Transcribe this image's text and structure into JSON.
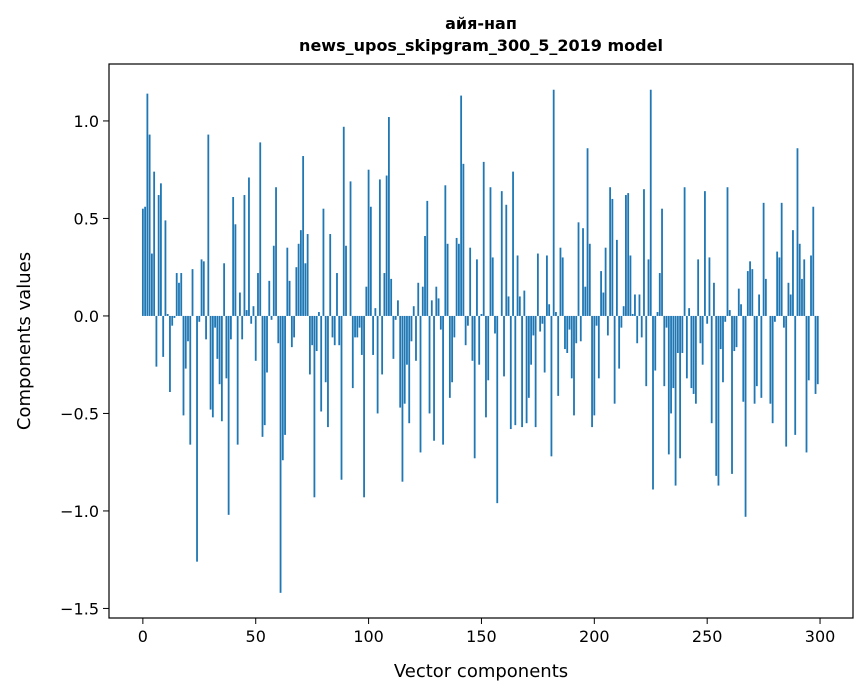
{
  "chart_data": {
    "type": "bar",
    "title": "айя-нап",
    "subtitle": "news_upos_skipgram_300_5_2019 model",
    "xlabel": "Vector components",
    "ylabel": "Components values",
    "xlim": [
      -15,
      314.6
    ],
    "ylim": [
      -1.549,
      1.292
    ],
    "xticks": [
      0,
      50,
      100,
      150,
      200,
      250,
      300
    ],
    "xtick_labels": [
      "0",
      "50",
      "100",
      "150",
      "200",
      "250",
      "300"
    ],
    "yticks": [
      -1.5,
      -1.0,
      -0.5,
      0.0,
      0.5,
      1.0
    ],
    "ytick_labels": [
      "−1.5",
      "−1.0",
      "−0.5",
      "0.0",
      "0.5",
      "1.0"
    ],
    "grid": false,
    "bar_color": "#1f77b4",
    "values": [
      0.55,
      0.56,
      1.14,
      0.93,
      0.32,
      0.74,
      -0.26,
      0.62,
      0.68,
      -0.21,
      0.49,
      0.01,
      -0.39,
      -0.05,
      -0.01,
      0.22,
      0.17,
      0.22,
      -0.51,
      -0.27,
      -0.13,
      -0.66,
      0.24,
      0,
      -1.26,
      -0.03,
      0.29,
      0.28,
      -0.12,
      0.93,
      -0.48,
      -0.52,
      -0.06,
      -0.22,
      -0.35,
      -0.54,
      0.27,
      -0.32,
      -1.02,
      -0.12,
      0.61,
      0.47,
      -0.66,
      0.12,
      -0.12,
      0.62,
      0.03,
      0.71,
      -0.04,
      0.05,
      -0.23,
      0.22,
      0.89,
      -0.62,
      -0.56,
      -0.29,
      0.18,
      -0.02,
      0.36,
      0.66,
      -0.14,
      -1.42,
      -0.74,
      -0.61,
      0.35,
      0.18,
      -0.16,
      -0.11,
      0.25,
      0.37,
      0.44,
      0.82,
      0.27,
      0.42,
      -0.3,
      -0.15,
      -0.93,
      -0.18,
      0.02,
      -0.49,
      0.55,
      -0.34,
      -0.57,
      0.42,
      -0.11,
      -0.15,
      0.22,
      -0.15,
      -0.84,
      0.97,
      0.36,
      0,
      0.69,
      -0.37,
      -0.11,
      -0.11,
      -0.06,
      -0.2,
      -0.93,
      0.15,
      0.75,
      0.56,
      -0.2,
      0.04,
      -0.5,
      0.7,
      -0.3,
      0.22,
      0.72,
      1.02,
      0.19,
      -0.22,
      -0.02,
      0.08,
      -0.47,
      -0.85,
      -0.45,
      -0.25,
      -0.55,
      -0.13,
      0.05,
      -0.23,
      0.17,
      -0.7,
      0.15,
      0.41,
      0.59,
      -0.5,
      0.08,
      -0.64,
      0.15,
      0.09,
      -0.07,
      -0.66,
      0.67,
      0.37,
      -0.42,
      -0.34,
      -0.11,
      0.4,
      0.37,
      1.13,
      0.78,
      -0.15,
      -0.05,
      0.35,
      -0.23,
      -0.73,
      0.29,
      -0.25,
      0.01,
      0.79,
      -0.52,
      -0.33,
      0.66,
      0.3,
      -0.09,
      -0.96,
      0,
      0.64,
      -0.31,
      0.57,
      0.1,
      -0.58,
      0.74,
      -0.56,
      0.31,
      0.1,
      -0.57,
      0.13,
      -0.55,
      -0.42,
      -0.25,
      -0.1,
      -0.57,
      0.32,
      -0.08,
      -0.04,
      -0.29,
      0.31,
      0.06,
      -0.72,
      1.16,
      0.02,
      -0.41,
      0.35,
      0.3,
      -0.17,
      -0.19,
      -0.07,
      -0.32,
      -0.51,
      -0.14,
      0.48,
      -0.13,
      0.45,
      0.15,
      0.86,
      0.37,
      -0.57,
      -0.51,
      -0.05,
      -0.32,
      0.23,
      0.12,
      0.35,
      -0.1,
      0.66,
      0.6,
      -0.45,
      0.39,
      -0.27,
      -0.06,
      0.05,
      0.62,
      0.63,
      0.31,
      0.01,
      0.11,
      -0.14,
      0.11,
      -0.11,
      0.65,
      -0.36,
      0.29,
      1.16,
      -0.89,
      -0.28,
      0.02,
      0.22,
      0.55,
      -0.36,
      -0.06,
      -0.71,
      -0.5,
      -0.37,
      -0.87,
      -0.19,
      -0.73,
      -0.19,
      0.66,
      -0.32,
      0.04,
      -0.37,
      -0.4,
      -0.45,
      0.29,
      -0.14,
      -0.25,
      0.64,
      -0.04,
      0.3,
      -0.55,
      0.17,
      -0.82,
      -0.87,
      -0.17,
      -0.34,
      -0.03,
      0.66,
      0.03,
      -0.81,
      -0.18,
      -0.16,
      0.14,
      0.06,
      -0.44,
      -1.03,
      0.23,
      0.28,
      0.24,
      -0.45,
      -0.36,
      0.11,
      -0.42,
      0.58,
      0.19,
      0,
      -0.45,
      -0.55,
      -0.03,
      0.33,
      0.3,
      0.58,
      -0.06,
      -0.67,
      0.17,
      0.11,
      0.44,
      -0.61,
      0.86,
      0.37,
      0.19,
      0.29,
      -0.7,
      -0.33,
      0.31,
      0.56,
      -0.4,
      -0.35
    ]
  }
}
